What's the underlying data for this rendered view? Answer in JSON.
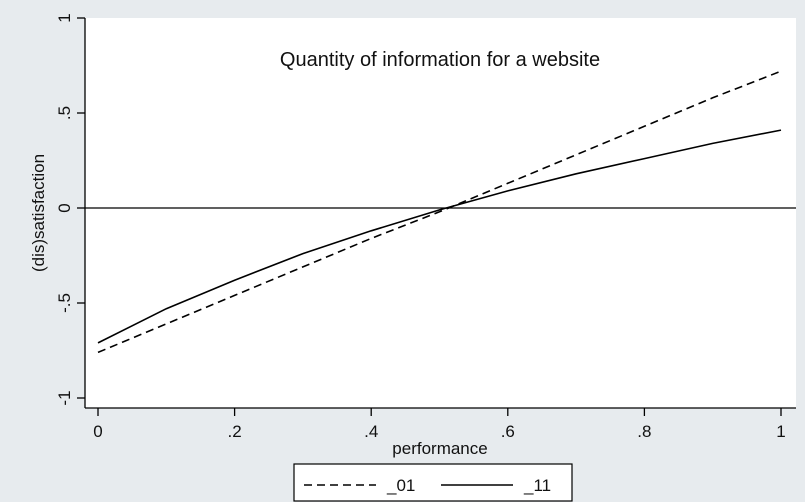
{
  "chart_data": {
    "type": "line",
    "title": "Quantity of information for a website",
    "xlabel": "performance",
    "ylabel": "(dis)satisfaction",
    "xlim": [
      0,
      1
    ],
    "ylim": [
      -1,
      1
    ],
    "x_ticks": [
      0,
      0.2,
      0.4,
      0.6,
      0.8,
      1
    ],
    "x_tick_labels": [
      "0",
      ".2",
      ".4",
      ".6",
      ".8",
      "1"
    ],
    "y_ticks": [
      -1,
      -0.5,
      0,
      0.5,
      1
    ],
    "y_tick_labels": [
      "-1",
      "-.5",
      "0",
      ".5",
      "1"
    ],
    "reference_line_y": 0,
    "grid": false,
    "legend_position": "bottom",
    "series": [
      {
        "name": "_01",
        "style": "dashed",
        "x": [
          0,
          0.1,
          0.2,
          0.3,
          0.4,
          0.5,
          0.6,
          0.7,
          0.8,
          0.9,
          1
        ],
        "y": [
          -0.76,
          -0.61,
          -0.46,
          -0.31,
          -0.16,
          -0.02,
          0.13,
          0.28,
          0.43,
          0.58,
          0.72
        ]
      },
      {
        "name": "_11",
        "style": "solid",
        "x": [
          0,
          0.1,
          0.2,
          0.3,
          0.4,
          0.5,
          0.6,
          0.7,
          0.8,
          0.9,
          1
        ],
        "y": [
          -0.71,
          -0.53,
          -0.38,
          -0.24,
          -0.12,
          -0.01,
          0.09,
          0.18,
          0.26,
          0.34,
          0.41
        ]
      }
    ]
  }
}
